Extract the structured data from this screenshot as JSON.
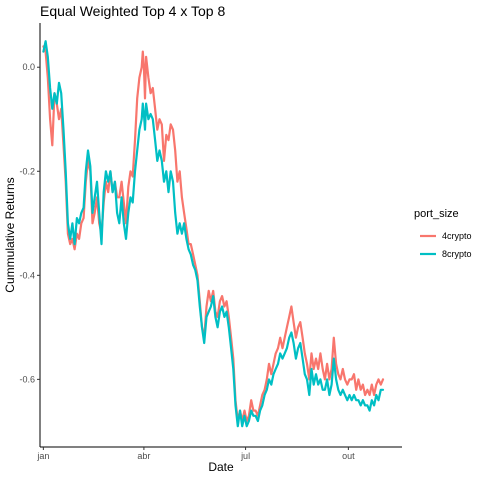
{
  "chart_data": {
    "type": "line",
    "title": "Equal Weighted Top 4 x Top 8",
    "xlabel": "Date",
    "ylabel": "Cummulative Returns",
    "x_ticks": [
      {
        "label": "jan",
        "day": 0
      },
      {
        "label": "abr",
        "day": 90
      },
      {
        "label": "jul",
        "day": 181
      },
      {
        "label": "out",
        "day": 273
      }
    ],
    "y_ticks": [
      0.0,
      -0.2,
      -0.4,
      -0.6
    ],
    "y_tick_labels": [
      "0.0",
      "-0.2",
      "-0.4",
      "-0.6"
    ],
    "xlim": [
      -3,
      321
    ],
    "ylim": [
      -0.73,
      0.085
    ],
    "grid": false,
    "legend": {
      "title": "port_size",
      "position": "right"
    },
    "series": [
      {
        "name": "4crypto",
        "color": "#F8766D",
        "points": [
          [
            0,
            0.04
          ],
          [
            2,
            0.03
          ],
          [
            4,
            -0.02
          ],
          [
            6,
            -0.1
          ],
          [
            8,
            -0.15
          ],
          [
            10,
            -0.05
          ],
          [
            12,
            -0.07
          ],
          [
            14,
            -0.1
          ],
          [
            16,
            -0.08
          ],
          [
            18,
            -0.15
          ],
          [
            20,
            -0.22
          ],
          [
            22,
            -0.32
          ],
          [
            24,
            -0.34
          ],
          [
            26,
            -0.33
          ],
          [
            28,
            -0.35
          ],
          [
            30,
            -0.32
          ],
          [
            32,
            -0.33
          ],
          [
            34,
            -0.3
          ],
          [
            36,
            -0.29
          ],
          [
            38,
            -0.22
          ],
          [
            40,
            -0.18
          ],
          [
            42,
            -0.2
          ],
          [
            44,
            -0.3
          ],
          [
            46,
            -0.28
          ],
          [
            48,
            -0.25
          ],
          [
            50,
            -0.3
          ],
          [
            52,
            -0.32
          ],
          [
            54,
            -0.26
          ],
          [
            56,
            -0.22
          ],
          [
            58,
            -0.24
          ],
          [
            60,
            -0.2
          ],
          [
            62,
            -0.24
          ],
          [
            64,
            -0.22
          ],
          [
            66,
            -0.25
          ],
          [
            68,
            -0.25
          ],
          [
            70,
            -0.22
          ],
          [
            72,
            -0.26
          ],
          [
            74,
            -0.3
          ],
          [
            76,
            -0.23
          ],
          [
            78,
            -0.2
          ],
          [
            80,
            -0.21
          ],
          [
            82,
            -0.14
          ],
          [
            84,
            -0.06
          ],
          [
            86,
            -0.02
          ],
          [
            88,
            -0.0
          ],
          [
            89,
            0.03
          ],
          [
            90,
            0.0
          ],
          [
            91,
            -0.06
          ],
          [
            92,
            0.02
          ],
          [
            94,
            -0.02
          ],
          [
            96,
            -0.05
          ],
          [
            98,
            -0.04
          ],
          [
            100,
            -0.08
          ],
          [
            102,
            -0.12
          ],
          [
            104,
            -0.1
          ],
          [
            106,
            -0.11
          ],
          [
            108,
            -0.18
          ],
          [
            110,
            -0.13
          ],
          [
            112,
            -0.14
          ],
          [
            114,
            -0.11
          ],
          [
            116,
            -0.12
          ],
          [
            118,
            -0.16
          ],
          [
            120,
            -0.22
          ],
          [
            122,
            -0.2
          ],
          [
            124,
            -0.25
          ],
          [
            126,
            -0.28
          ],
          [
            128,
            -0.31
          ],
          [
            130,
            -0.34
          ],
          [
            132,
            -0.34
          ],
          [
            134,
            -0.36
          ],
          [
            136,
            -0.38
          ],
          [
            138,
            -0.4
          ],
          [
            140,
            -0.45
          ],
          [
            142,
            -0.5
          ],
          [
            144,
            -0.52
          ],
          [
            146,
            -0.46
          ],
          [
            148,
            -0.43
          ],
          [
            150,
            -0.45
          ],
          [
            152,
            -0.43
          ],
          [
            154,
            -0.47
          ],
          [
            156,
            -0.48
          ],
          [
            158,
            -0.45
          ],
          [
            160,
            -0.44
          ],
          [
            162,
            -0.46
          ],
          [
            164,
            -0.45
          ],
          [
            166,
            -0.48
          ],
          [
            168,
            -0.52
          ],
          [
            170,
            -0.56
          ],
          [
            172,
            -0.64
          ],
          [
            174,
            -0.68
          ],
          [
            176,
            -0.66
          ],
          [
            178,
            -0.68
          ],
          [
            180,
            -0.66
          ],
          [
            182,
            -0.68
          ],
          [
            184,
            -0.67
          ],
          [
            186,
            -0.64
          ],
          [
            188,
            -0.66
          ],
          [
            190,
            -0.66
          ],
          [
            192,
            -0.67
          ],
          [
            194,
            -0.65
          ],
          [
            196,
            -0.63
          ],
          [
            198,
            -0.62
          ],
          [
            200,
            -0.6
          ],
          [
            202,
            -0.57
          ],
          [
            204,
            -0.59
          ],
          [
            206,
            -0.57
          ],
          [
            208,
            -0.55
          ],
          [
            210,
            -0.54
          ],
          [
            212,
            -0.52
          ],
          [
            214,
            -0.54
          ],
          [
            216,
            -0.52
          ],
          [
            218,
            -0.5
          ],
          [
            220,
            -0.48
          ],
          [
            222,
            -0.46
          ],
          [
            224,
            -0.49
          ],
          [
            226,
            -0.52
          ],
          [
            228,
            -0.5
          ],
          [
            230,
            -0.49
          ],
          [
            232,
            -0.52
          ],
          [
            234,
            -0.55
          ],
          [
            236,
            -0.57
          ],
          [
            238,
            -0.6
          ],
          [
            240,
            -0.55
          ],
          [
            242,
            -0.58
          ],
          [
            244,
            -0.56
          ],
          [
            246,
            -0.58
          ],
          [
            248,
            -0.55
          ],
          [
            250,
            -0.58
          ],
          [
            252,
            -0.6
          ],
          [
            254,
            -0.57
          ],
          [
            256,
            -0.6
          ],
          [
            258,
            -0.58
          ],
          [
            260,
            -0.52
          ],
          [
            262,
            -0.57
          ],
          [
            264,
            -0.59
          ],
          [
            266,
            -0.6
          ],
          [
            268,
            -0.58
          ],
          [
            270,
            -0.6
          ],
          [
            272,
            -0.61
          ],
          [
            274,
            -0.6
          ],
          [
            276,
            -0.6
          ],
          [
            278,
            -0.59
          ],
          [
            280,
            -0.62
          ],
          [
            282,
            -0.6
          ],
          [
            284,
            -0.62
          ],
          [
            286,
            -0.61
          ],
          [
            288,
            -0.63
          ],
          [
            290,
            -0.62
          ],
          [
            292,
            -0.63
          ],
          [
            294,
            -0.61
          ],
          [
            296,
            -0.63
          ],
          [
            298,
            -0.61
          ],
          [
            300,
            -0.6
          ],
          [
            302,
            -0.61
          ],
          [
            304,
            -0.6
          ]
        ]
      },
      {
        "name": "8crypto",
        "color": "#00BFC4",
        "points": [
          [
            0,
            0.03
          ],
          [
            2,
            0.05
          ],
          [
            4,
            0.02
          ],
          [
            6,
            -0.04
          ],
          [
            8,
            -0.08
          ],
          [
            10,
            -0.05
          ],
          [
            12,
            -0.07
          ],
          [
            14,
            -0.03
          ],
          [
            16,
            -0.05
          ],
          [
            18,
            -0.12
          ],
          [
            20,
            -0.2
          ],
          [
            22,
            -0.3
          ],
          [
            24,
            -0.33
          ],
          [
            26,
            -0.3
          ],
          [
            28,
            -0.34
          ],
          [
            30,
            -0.29
          ],
          [
            32,
            -0.3
          ],
          [
            34,
            -0.28
          ],
          [
            36,
            -0.27
          ],
          [
            38,
            -0.2
          ],
          [
            40,
            -0.16
          ],
          [
            42,
            -0.19
          ],
          [
            44,
            -0.28
          ],
          [
            46,
            -0.25
          ],
          [
            48,
            -0.22
          ],
          [
            50,
            -0.28
          ],
          [
            52,
            -0.34
          ],
          [
            54,
            -0.24
          ],
          [
            56,
            -0.2
          ],
          [
            58,
            -0.22
          ],
          [
            60,
            -0.2
          ],
          [
            62,
            -0.24
          ],
          [
            64,
            -0.22
          ],
          [
            66,
            -0.28
          ],
          [
            68,
            -0.3
          ],
          [
            70,
            -0.25
          ],
          [
            72,
            -0.3
          ],
          [
            74,
            -0.33
          ],
          [
            76,
            -0.28
          ],
          [
            78,
            -0.25
          ],
          [
            80,
            -0.26
          ],
          [
            82,
            -0.2
          ],
          [
            84,
            -0.16
          ],
          [
            86,
            -0.12
          ],
          [
            88,
            -0.1
          ],
          [
            89,
            -0.07
          ],
          [
            90,
            -0.09
          ],
          [
            91,
            -0.12
          ],
          [
            92,
            -0.07
          ],
          [
            94,
            -0.1
          ],
          [
            96,
            -0.09
          ],
          [
            98,
            -0.1
          ],
          [
            100,
            -0.14
          ],
          [
            102,
            -0.18
          ],
          [
            104,
            -0.16
          ],
          [
            106,
            -0.18
          ],
          [
            108,
            -0.22
          ],
          [
            110,
            -0.2
          ],
          [
            112,
            -0.24
          ],
          [
            114,
            -0.2
          ],
          [
            116,
            -0.22
          ],
          [
            118,
            -0.28
          ],
          [
            120,
            -0.32
          ],
          [
            122,
            -0.3
          ],
          [
            124,
            -0.32
          ],
          [
            126,
            -0.3
          ],
          [
            128,
            -0.33
          ],
          [
            130,
            -0.35
          ],
          [
            132,
            -0.36
          ],
          [
            134,
            -0.38
          ],
          [
            136,
            -0.39
          ],
          [
            138,
            -0.41
          ],
          [
            140,
            -0.46
          ],
          [
            142,
            -0.5
          ],
          [
            144,
            -0.53
          ],
          [
            146,
            -0.48
          ],
          [
            148,
            -0.47
          ],
          [
            150,
            -0.46
          ],
          [
            152,
            -0.44
          ],
          [
            154,
            -0.48
          ],
          [
            156,
            -0.5
          ],
          [
            158,
            -0.47
          ],
          [
            160,
            -0.46
          ],
          [
            162,
            -0.48
          ],
          [
            164,
            -0.47
          ],
          [
            166,
            -0.5
          ],
          [
            168,
            -0.54
          ],
          [
            170,
            -0.58
          ],
          [
            172,
            -0.65
          ],
          [
            174,
            -0.69
          ],
          [
            176,
            -0.66
          ],
          [
            178,
            -0.69
          ],
          [
            180,
            -0.67
          ],
          [
            182,
            -0.69
          ],
          [
            184,
            -0.68
          ],
          [
            186,
            -0.66
          ],
          [
            188,
            -0.67
          ],
          [
            190,
            -0.67
          ],
          [
            192,
            -0.68
          ],
          [
            194,
            -0.66
          ],
          [
            196,
            -0.65
          ],
          [
            198,
            -0.63
          ],
          [
            200,
            -0.62
          ],
          [
            202,
            -0.6
          ],
          [
            204,
            -0.61
          ],
          [
            206,
            -0.59
          ],
          [
            208,
            -0.58
          ],
          [
            210,
            -0.57
          ],
          [
            212,
            -0.55
          ],
          [
            214,
            -0.56
          ],
          [
            216,
            -0.55
          ],
          [
            218,
            -0.54
          ],
          [
            220,
            -0.52
          ],
          [
            222,
            -0.51
          ],
          [
            224,
            -0.53
          ],
          [
            226,
            -0.56
          ],
          [
            228,
            -0.54
          ],
          [
            230,
            -0.53
          ],
          [
            232,
            -0.56
          ],
          [
            234,
            -0.59
          ],
          [
            236,
            -0.6
          ],
          [
            238,
            -0.63
          ],
          [
            240,
            -0.58
          ],
          [
            242,
            -0.61
          ],
          [
            244,
            -0.59
          ],
          [
            246,
            -0.61
          ],
          [
            248,
            -0.6
          ],
          [
            250,
            -0.62
          ],
          [
            252,
            -0.62
          ],
          [
            254,
            -0.6
          ],
          [
            256,
            -0.63
          ],
          [
            258,
            -0.61
          ],
          [
            260,
            -0.56
          ],
          [
            262,
            -0.6
          ],
          [
            264,
            -0.62
          ],
          [
            266,
            -0.63
          ],
          [
            268,
            -0.62
          ],
          [
            270,
            -0.63
          ],
          [
            272,
            -0.64
          ],
          [
            274,
            -0.63
          ],
          [
            276,
            -0.64
          ],
          [
            278,
            -0.63
          ],
          [
            280,
            -0.64
          ],
          [
            282,
            -0.64
          ],
          [
            284,
            -0.65
          ],
          [
            286,
            -0.64
          ],
          [
            288,
            -0.65
          ],
          [
            290,
            -0.65
          ],
          [
            292,
            -0.66
          ],
          [
            294,
            -0.64
          ],
          [
            296,
            -0.65
          ],
          [
            298,
            -0.63
          ],
          [
            300,
            -0.64
          ],
          [
            302,
            -0.62
          ],
          [
            304,
            -0.62
          ]
        ]
      }
    ]
  }
}
